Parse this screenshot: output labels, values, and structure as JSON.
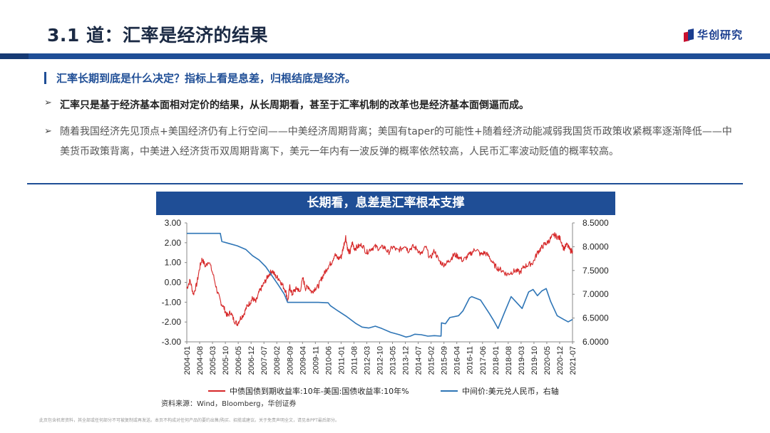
{
  "slide": {
    "title": "3.1 道：汇率是经济的结果",
    "logo_text": "华创研究",
    "colors": {
      "brand_blue": "#1f4e96",
      "brand_red": "#c8102e"
    }
  },
  "bullets": {
    "main": "汇率长期到底是什么决定？指标上看是息差，归根结底是经济。",
    "arrow_icon": "➢",
    "items": [
      "汇率只是基于经济基本面相对定价的结果，从长周期看，甚至于汇率机制的改革也是经济基本面倒逼而成。",
      "随着我国经济先见顶点+美国经济仍有上行空间——中美经济周期背离；美国有taper的可能性+随着经济动能减弱我国货币政策收紧概率逐渐降低——中美货币政策背离，中美进入经济货币双周期背离下，美元一年内有一波反弹的概率依然较高，人民币汇率波动贬值的概率较高。"
    ]
  },
  "chart_data": {
    "type": "line",
    "title": "长期看，息差是汇率根本支撑",
    "x_tick_labels": [
      "2004-01",
      "2004-08",
      "2005-03",
      "2005-10",
      "2006-05",
      "2006-12",
      "2007-07",
      "2008-02",
      "2008-09",
      "2009-04",
      "2009-11",
      "2010-06",
      "2011-01",
      "2011-08",
      "2012-03",
      "2012-10",
      "2013-05",
      "2013-12",
      "2014-07",
      "2015-02",
      "2015-09",
      "2016-04",
      "2016-11",
      "2017-06",
      "2018-01",
      "2018-08",
      "2019-03",
      "2019-10",
      "2020-05",
      "2020-12",
      "2021-07"
    ],
    "y_left": {
      "ticks": [
        "3.00",
        "2.00",
        "1.00",
        "0.00",
        "-1.00",
        "-2.00",
        "-3.00"
      ],
      "range": [
        -3,
        3
      ]
    },
    "y_right": {
      "ticks": [
        "8.5000",
        "8.0000",
        "7.5000",
        "7.0000",
        "6.5000",
        "6.0000"
      ],
      "range": [
        6,
        8.5
      ]
    },
    "grid": false,
    "legend_position": "bottom",
    "series": [
      {
        "name": "中债国债到期收益率:10年-美国:国债收益率:10年%",
        "axis": "left",
        "color": "#d62728",
        "x": [
          2004.0,
          2004.15,
          2004.3,
          2004.45,
          2004.6,
          2004.7,
          2004.85,
          2005.0,
          2005.2,
          2005.4,
          2005.55,
          2005.7,
          2005.85,
          2006.0,
          2006.15,
          2006.3,
          2006.45,
          2006.6,
          2006.75,
          2006.9,
          2007.0,
          2007.15,
          2007.3,
          2007.45,
          2007.6,
          2007.75,
          2007.9,
          2008.05,
          2008.2,
          2008.35,
          2008.5,
          2008.62,
          2008.7,
          2008.8,
          2008.92,
          2009.05,
          2009.15,
          2009.3,
          2009.42,
          2009.55,
          2009.7,
          2009.85,
          2010.0,
          2010.15,
          2010.3,
          2010.45,
          2010.6,
          2010.75,
          2010.9,
          2011.05,
          2011.15,
          2011.25,
          2011.35,
          2011.45,
          2011.55,
          2011.65,
          2011.8,
          2012.0,
          2012.2,
          2012.4,
          2012.6,
          2012.8,
          2013.0,
          2013.2,
          2013.4,
          2013.6,
          2013.8,
          2013.95,
          2014.1,
          2014.3,
          2014.5,
          2014.7,
          2014.9,
          2015.1,
          2015.3,
          2015.5,
          2015.7,
          2015.9,
          2016.05,
          2016.2,
          2016.4,
          2016.6,
          2016.8,
          2017.0,
          2017.2,
          2017.4,
          2017.6,
          2017.8,
          2018.0,
          2018.2,
          2018.4,
          2018.6,
          2018.8,
          2019.0,
          2019.2,
          2019.4,
          2019.6,
          2019.8,
          2020.0,
          2020.15,
          2020.3,
          2020.45,
          2020.6,
          2020.75,
          2020.9,
          2021.05,
          2021.2,
          2021.35,
          2021.5,
          2021.6
        ],
        "y": [
          -0.3,
          0.1,
          -0.6,
          -0.1,
          0.8,
          1.2,
          0.8,
          1.1,
          0.4,
          -0.5,
          -1.0,
          -1.3,
          -1.7,
          -1.5,
          -1.9,
          -2.1,
          -1.8,
          -1.6,
          -1.2,
          -1.0,
          -0.8,
          -1.0,
          -0.5,
          -0.2,
          0.1,
          0.4,
          0.6,
          0.3,
          0.2,
          -0.1,
          -0.4,
          -0.9,
          -0.2,
          -0.6,
          -0.4,
          -0.3,
          -0.5,
          0.2,
          -0.3,
          -0.2,
          -0.5,
          -0.3,
          -0.2,
          0.2,
          0.5,
          0.8,
          1.0,
          1.4,
          1.2,
          1.3,
          1.8,
          2.3,
          1.6,
          1.5,
          2.0,
          1.7,
          1.8,
          1.9,
          1.5,
          1.7,
          1.8,
          1.7,
          1.8,
          1.5,
          1.8,
          1.6,
          1.7,
          1.9,
          1.6,
          1.8,
          1.7,
          1.4,
          1.8,
          1.2,
          1.6,
          1.1,
          0.9,
          1.0,
          1.2,
          1.4,
          1.3,
          1.1,
          1.3,
          1.5,
          1.7,
          1.4,
          1.5,
          1.3,
          0.9,
          0.7,
          0.6,
          0.4,
          0.5,
          0.6,
          0.5,
          0.8,
          0.9,
          1.0,
          1.5,
          1.7,
          1.9,
          2.0,
          2.2,
          2.4,
          2.3,
          2.2,
          1.7,
          1.9,
          1.6,
          1.6
        ]
      },
      {
        "name": "中间价:美元兑人民币，右轴",
        "axis": "right",
        "color": "#2e75b6",
        "x": [
          2004.0,
          2005.53,
          2005.6,
          2005.9,
          2006.3,
          2006.7,
          2007.0,
          2007.3,
          2007.6,
          2007.9,
          2008.2,
          2008.45,
          2008.6,
          2009.0,
          2009.5,
          2010.0,
          2010.45,
          2010.55,
          2010.9,
          2011.3,
          2011.7,
          2012.0,
          2012.3,
          2012.6,
          2012.9,
          2013.3,
          2013.7,
          2014.0,
          2014.2,
          2014.4,
          2014.7,
          2015.0,
          2015.3,
          2015.6,
          2015.62,
          2015.8,
          2016.0,
          2016.4,
          2016.6,
          2016.9,
          2017.0,
          2017.4,
          2017.8,
          2018.0,
          2018.2,
          2018.5,
          2018.8,
          2019.0,
          2019.3,
          2019.6,
          2019.8,
          2020.0,
          2020.2,
          2020.4,
          2020.6,
          2020.9,
          2021.2,
          2021.4,
          2021.6
        ],
        "y": [
          8.28,
          8.28,
          8.11,
          8.07,
          8.02,
          7.94,
          7.81,
          7.72,
          7.58,
          7.38,
          7.18,
          7.0,
          6.83,
          6.83,
          6.83,
          6.83,
          6.82,
          6.76,
          6.65,
          6.53,
          6.39,
          6.31,
          6.29,
          6.33,
          6.28,
          6.2,
          6.15,
          6.1,
          6.12,
          6.16,
          6.15,
          6.12,
          6.13,
          6.12,
          6.4,
          6.38,
          6.51,
          6.55,
          6.65,
          6.92,
          6.95,
          6.88,
          6.6,
          6.45,
          6.28,
          6.62,
          6.95,
          6.85,
          6.7,
          7.05,
          7.1,
          6.97,
          7.07,
          7.12,
          6.85,
          6.55,
          6.47,
          6.42,
          6.47
        ]
      }
    ]
  },
  "source_note": "资料来源：Wind，Bloomberg，华创证券",
  "disclaimer": "此页包含机密资料，其全部或任何部分不可被复制或再发送。本页不构成对任何产品的要约出售/购买、招揽或建议。关于免责声明全文，请见本PPT最后部分。"
}
